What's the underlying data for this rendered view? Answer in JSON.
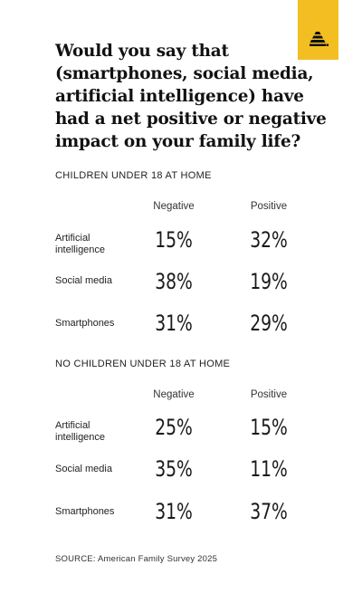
{
  "title": "Would you say that (smartphones, social media, artificial intelligence) have had a net positive or negative impact on your family life?",
  "logo_icon": "beehive-icon",
  "accent_color": "#f2be22",
  "chart_data": [
    {
      "type": "table",
      "title": "CHILDREN UNDER 18 AT HOME",
      "columns": [
        "Negative",
        "Positive"
      ],
      "rows": [
        {
          "label": "Artificial intelligence",
          "values": [
            "15%",
            "32%"
          ]
        },
        {
          "label": "Social media",
          "values": [
            "38%",
            "19%"
          ]
        },
        {
          "label": "Smartphones",
          "values": [
            "31%",
            "29%"
          ]
        }
      ]
    },
    {
      "type": "table",
      "title": "NO CHILDREN UNDER 18 AT HOME",
      "columns": [
        "Negative",
        "Positive"
      ],
      "rows": [
        {
          "label": "Artificial intelligence",
          "values": [
            "25%",
            "15%"
          ]
        },
        {
          "label": "Social media",
          "values": [
            "35%",
            "11%"
          ]
        },
        {
          "label": "Smartphones",
          "values": [
            "31%",
            "37%"
          ]
        }
      ]
    }
  ],
  "source": "SOURCE: American Family Survey 2025"
}
